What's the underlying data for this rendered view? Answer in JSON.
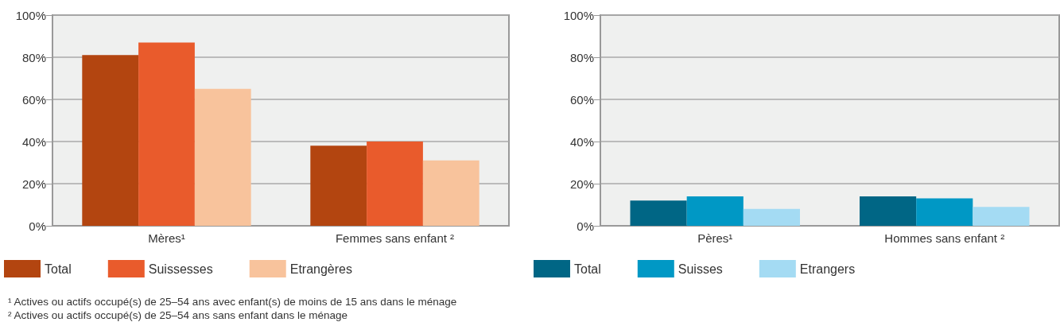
{
  "chart_data": [
    {
      "type": "bar",
      "categories": [
        "Mères¹",
        "Femmes sans enfant ²"
      ],
      "series": [
        {
          "name": "Total",
          "color": "#b34510",
          "values": [
            81,
            38
          ]
        },
        {
          "name": "Suissesses",
          "color": "#e95b2c",
          "values": [
            87,
            40
          ]
        },
        {
          "name": "Etrangères",
          "color": "#f8c39c",
          "values": [
            65,
            31
          ]
        }
      ],
      "ylim": [
        0,
        100
      ],
      "yticks": [
        {
          "value": 0,
          "label": "0%"
        },
        {
          "value": 20,
          "label": "20%"
        },
        {
          "value": 40,
          "label": "40%"
        },
        {
          "value": 60,
          "label": "60%"
        },
        {
          "value": 80,
          "label": "80%"
        },
        {
          "value": 100,
          "label": "100%"
        }
      ],
      "grid": "y",
      "legend": "bottom",
      "annotations": [
        "¹  Actives ou actifs occupé(s) de 25–54 ans avec enfant(s) de moins de 15 ans dans le ménage",
        "²  Actives ou actifs occupé(s) de 25–54 ans sans enfant dans le ménage"
      ]
    },
    {
      "type": "bar",
      "categories": [
        "Pères¹",
        "Hommes sans enfant ²"
      ],
      "series": [
        {
          "name": "Total",
          "color": "#006685",
          "values": [
            12,
            14
          ]
        },
        {
          "name": "Suisses",
          "color": "#0098c5",
          "values": [
            14,
            13
          ]
        },
        {
          "name": "Etrangers",
          "color": "#a4dbf3",
          "values": [
            8,
            9
          ]
        }
      ],
      "ylim": [
        0,
        100
      ],
      "yticks": [
        {
          "value": 0,
          "label": "0%"
        },
        {
          "value": 20,
          "label": "20%"
        },
        {
          "value": 40,
          "label": "40%"
        },
        {
          "value": 60,
          "label": "60%"
        },
        {
          "value": 80,
          "label": "80%"
        },
        {
          "value": 100,
          "label": "100%"
        }
      ],
      "grid": "y",
      "legend": "bottom"
    }
  ]
}
